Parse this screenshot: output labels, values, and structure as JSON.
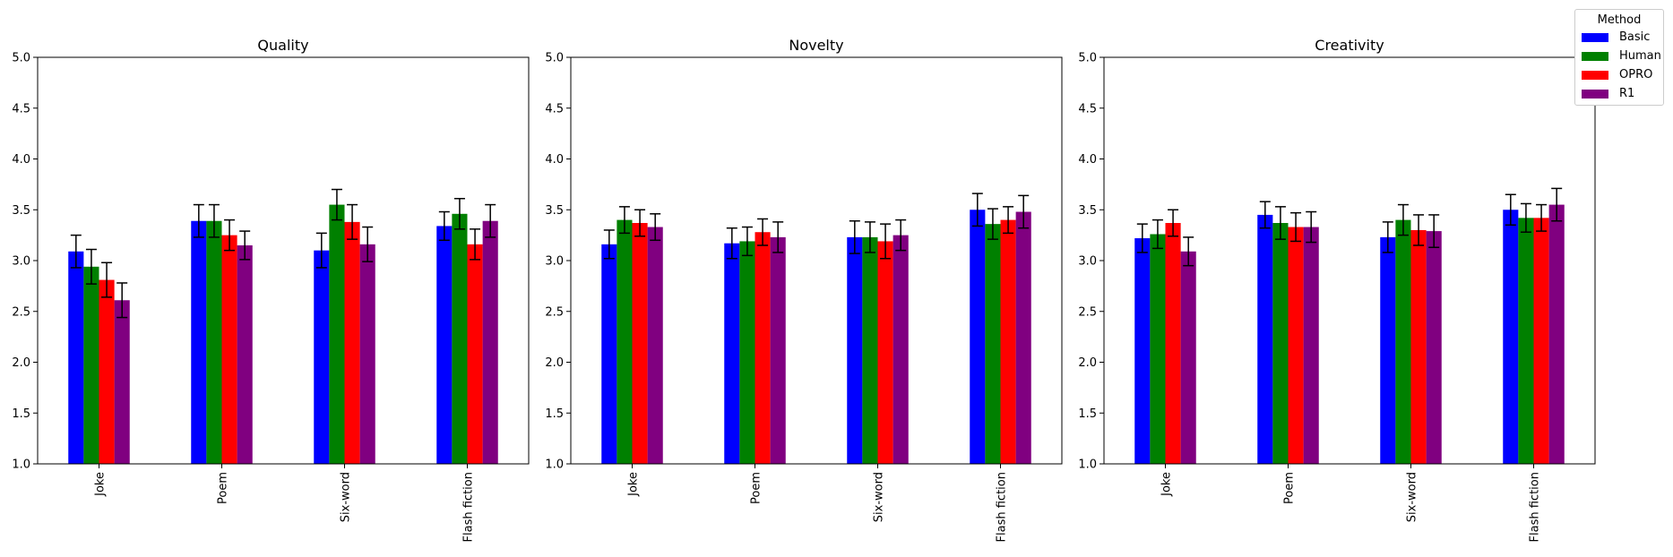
{
  "legend": {
    "title": "Method",
    "placement": "top-right"
  },
  "chart_data": [
    {
      "type": "bar",
      "title": "Quality",
      "categories": [
        "Joke",
        "Poem",
        "Six-word",
        "Flash fiction"
      ],
      "ylim": [
        1.0,
        5.0
      ],
      "yticks": [
        "1.0",
        "1.5",
        "2.0",
        "2.5",
        "3.0",
        "3.5",
        "4.0",
        "4.5",
        "5.0"
      ],
      "series": [
        {
          "name": "Basic",
          "color": "#0000ff",
          "values": [
            3.09,
            3.39,
            3.1,
            3.34
          ],
          "errors": [
            0.16,
            0.16,
            0.17,
            0.14
          ]
        },
        {
          "name": "Human",
          "color": "#008000",
          "values": [
            2.94,
            3.39,
            3.55,
            3.46
          ],
          "errors": [
            0.17,
            0.16,
            0.15,
            0.15
          ]
        },
        {
          "name": "OPRO",
          "color": "#ff0000",
          "values": [
            2.81,
            3.25,
            3.38,
            3.16
          ],
          "errors": [
            0.17,
            0.15,
            0.17,
            0.15
          ]
        },
        {
          "name": "R1",
          "color": "#800080",
          "values": [
            2.61,
            3.15,
            3.16,
            3.39
          ],
          "errors": [
            0.17,
            0.14,
            0.17,
            0.16
          ]
        }
      ]
    },
    {
      "type": "bar",
      "title": "Novelty",
      "categories": [
        "Joke",
        "Poem",
        "Six-word",
        "Flash fiction"
      ],
      "ylim": [
        1.0,
        5.0
      ],
      "yticks": [
        "1.0",
        "1.5",
        "2.0",
        "2.5",
        "3.0",
        "3.5",
        "4.0",
        "4.5",
        "5.0"
      ],
      "series": [
        {
          "name": "Basic",
          "color": "#0000ff",
          "values": [
            3.16,
            3.17,
            3.23,
            3.5
          ],
          "errors": [
            0.14,
            0.15,
            0.16,
            0.16
          ]
        },
        {
          "name": "Human",
          "color": "#008000",
          "values": [
            3.4,
            3.19,
            3.23,
            3.36
          ],
          "errors": [
            0.13,
            0.14,
            0.15,
            0.15
          ]
        },
        {
          "name": "OPRO",
          "color": "#ff0000",
          "values": [
            3.37,
            3.28,
            3.19,
            3.4
          ],
          "errors": [
            0.13,
            0.13,
            0.17,
            0.13
          ]
        },
        {
          "name": "R1",
          "color": "#800080",
          "values": [
            3.33,
            3.23,
            3.25,
            3.48
          ],
          "errors": [
            0.13,
            0.15,
            0.15,
            0.16
          ]
        }
      ]
    },
    {
      "type": "bar",
      "title": "Creativity",
      "categories": [
        "Joke",
        "Poem",
        "Six-word",
        "Flash fiction"
      ],
      "ylim": [
        1.0,
        5.0
      ],
      "yticks": [
        "1.0",
        "1.5",
        "2.0",
        "2.5",
        "3.0",
        "3.5",
        "4.0",
        "4.5",
        "5.0"
      ],
      "series": [
        {
          "name": "Basic",
          "color": "#0000ff",
          "values": [
            3.22,
            3.45,
            3.23,
            3.5
          ],
          "errors": [
            0.14,
            0.13,
            0.15,
            0.15
          ]
        },
        {
          "name": "Human",
          "color": "#008000",
          "values": [
            3.26,
            3.37,
            3.4,
            3.42
          ],
          "errors": [
            0.14,
            0.16,
            0.15,
            0.14
          ]
        },
        {
          "name": "OPRO",
          "color": "#ff0000",
          "values": [
            3.37,
            3.33,
            3.3,
            3.42
          ],
          "errors": [
            0.13,
            0.14,
            0.15,
            0.13
          ]
        },
        {
          "name": "R1",
          "color": "#800080",
          "values": [
            3.09,
            3.33,
            3.29,
            3.55
          ],
          "errors": [
            0.14,
            0.15,
            0.16,
            0.16
          ]
        }
      ]
    }
  ]
}
